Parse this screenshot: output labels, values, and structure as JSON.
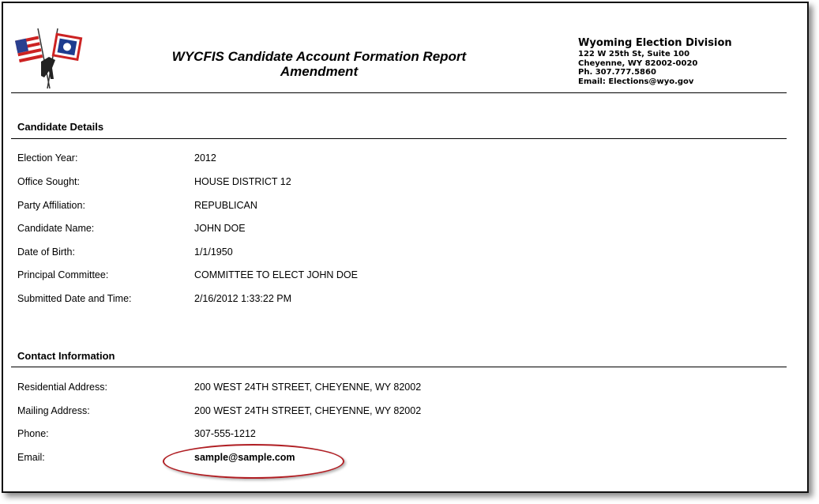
{
  "header": {
    "title_line1": "WYCFIS Candidate Account Formation Report",
    "title_line2": "Amendment",
    "org": {
      "name": "Wyoming Election Division",
      "address1": "122 W 25th St, Suite 100",
      "address2": "Cheyenne, WY 82002-0020",
      "phone": "Ph. 307.777.5860",
      "email": "Email: Elections@wyo.gov"
    }
  },
  "candidate_details": {
    "heading": "Candidate Details",
    "rows": [
      {
        "label": "Election Year:",
        "value": "2012"
      },
      {
        "label": "Office Sought:",
        "value": "HOUSE DISTRICT 12"
      },
      {
        "label": "Party Affiliation:",
        "value": "REPUBLICAN"
      },
      {
        "label": "Candidate Name:",
        "value": "JOHN DOE"
      },
      {
        "label": "Date of Birth:",
        "value": "1/1/1950"
      },
      {
        "label": "Principal Committee:",
        "value": "COMMITTEE TO ELECT JOHN DOE"
      },
      {
        "label": "Submitted Date and Time:",
        "value": "2/16/2012 1:33:22 PM"
      }
    ]
  },
  "contact_information": {
    "heading": "Contact Information",
    "rows": [
      {
        "label": "Residential Address:",
        "value": "200 WEST 24TH STREET, CHEYENNE, WY 82002"
      },
      {
        "label": "Mailing Address:",
        "value": "200 WEST 24TH STREET, CHEYENNE, WY 82002"
      },
      {
        "label": "Phone:",
        "value": "307-555-1212"
      },
      {
        "label": "Email:",
        "value": "sample@sample.com"
      }
    ]
  },
  "colors": {
    "highlight_ellipse": "#b01e23"
  }
}
